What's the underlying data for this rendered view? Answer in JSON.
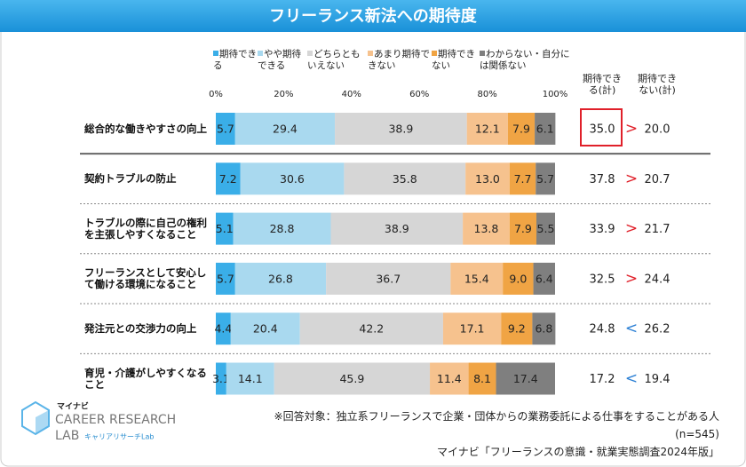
{
  "chart_data": {
    "type": "stacked-bar-horizontal",
    "title": "フリーランス新法への期待度",
    "categories": [
      "総合的な働きやすさの向上",
      "契約トラブルの防止",
      "トラブルの際に自己の権利を主張しやすくなること",
      "フリーランスとして安心して働ける環境になること",
      "発注元との交渉力の向上",
      "育児・介護がしやすくなること"
    ],
    "series": [
      {
        "name": "期待できる",
        "color": "#3aaee8",
        "values": [
          5.7,
          7.2,
          5.1,
          5.7,
          4.4,
          3.1
        ],
        "value_labels": [
          "5.7",
          "7.2",
          "5.1",
          "5.7",
          "4.4",
          "3.1"
        ]
      },
      {
        "name": "やや期待できる",
        "color": "#a9d9ef",
        "values": [
          29.4,
          30.6,
          28.8,
          26.8,
          20.4,
          14.1
        ],
        "value_labels": [
          "29.4",
          "30.6",
          "28.8",
          "26.8",
          "20.4",
          "14.1"
        ]
      },
      {
        "name": "どちらともいえない",
        "color": "#d6d6d6",
        "values": [
          38.9,
          35.8,
          38.9,
          36.7,
          42.2,
          45.9
        ],
        "value_labels": [
          "38.9",
          "35.8",
          "38.9",
          "36.7",
          "42.2",
          "45.9"
        ]
      },
      {
        "name": "あまり期待できない",
        "color": "#f6c28e",
        "values": [
          12.1,
          13.0,
          13.8,
          15.4,
          17.1,
          11.4
        ],
        "value_labels": [
          "12.1",
          "13.0",
          "13.8",
          "15.4",
          "17.1",
          "11.4"
        ]
      },
      {
        "name": "期待できない",
        "color": "#f0a444",
        "values": [
          7.9,
          7.7,
          7.9,
          9.0,
          9.2,
          8.1
        ],
        "value_labels": [
          "7.9",
          "7.7",
          "7.9",
          "9.0",
          "9.2",
          "8.1"
        ]
      },
      {
        "name": "わからない・自分には関係ない",
        "color": "#7f7f7f",
        "values": [
          6.1,
          5.7,
          5.5,
          6.4,
          6.8,
          17.4
        ],
        "value_labels": [
          "6.1",
          "5.7",
          "5.5",
          "6.4",
          "6.8",
          "17.4"
        ]
      }
    ],
    "xlim": [
      0,
      100
    ],
    "xticks": [
      {
        "value": 0,
        "label": "0%"
      },
      {
        "value": 20,
        "label": "20%"
      },
      {
        "value": 40,
        "label": "40%"
      },
      {
        "value": 60,
        "label": "60%"
      },
      {
        "value": 80,
        "label": "80%"
      },
      {
        "value": 100,
        "label": "100%"
      }
    ],
    "columns": [
      {
        "name": "期待できる(計)",
        "values": [
          35.0,
          37.8,
          33.9,
          32.5,
          24.8,
          17.2
        ],
        "value_labels": [
          "35.0",
          "37.8",
          "33.9",
          "32.5",
          "24.8",
          "17.2"
        ]
      },
      {
        "name": "期待できない(計)",
        "values": [
          20.0,
          20.7,
          21.7,
          24.4,
          26.2,
          19.4
        ],
        "value_labels": [
          "20.0",
          "20.7",
          "21.7",
          "24.4",
          "26.2",
          "19.4"
        ]
      }
    ],
    "comparisons": [
      ">",
      ">",
      ">",
      ">",
      "<",
      "<"
    ],
    "notes": [
      "※回答対象：独立系フリーランスで企業・団体からの業務委託による仕事をすることがある人",
      "(n=545)",
      "マイナビ「フリーランスの意識・就業実態調査2024年版」"
    ]
  },
  "logo": {
    "brand": "マイナビ",
    "line1": "CAREER RESEARCH",
    "line2": "LAB",
    "sub": "キャリアリサーチLab"
  }
}
